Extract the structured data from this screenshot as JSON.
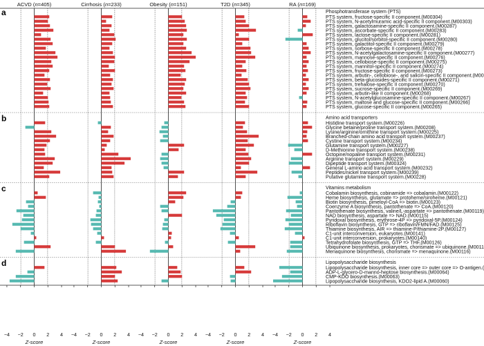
{
  "chart_data": {
    "type": "bar",
    "orientation": "horizontal",
    "xlabel": "Z-score",
    "xlim": [
      -4.5,
      4.5
    ],
    "xticks": [
      -4,
      -2,
      0,
      2,
      4
    ],
    "threshold": 1.96,
    "colors": {
      "positive": "#d63a3a",
      "negative": "#56b9b1"
    },
    "studies": [
      {
        "name": "ACVD",
        "n_label": "n",
        "n_value": "=405"
      },
      {
        "name": "Cirrhosis",
        "n_label": "n",
        "n_value": "=233"
      },
      {
        "name": "Obesity",
        "n_label": "n",
        "n_value": "=151"
      },
      {
        "name": "T2D",
        "n_label": "n",
        "n_value": "=345"
      },
      {
        "name": "RA",
        "n_label": "n",
        "n_value": "=169"
      }
    ],
    "panels": [
      {
        "letter": "a",
        "title": "Phosphotransferase system (PTS)",
        "rows": [
          {
            "label": "PTS system, fructose-specific II component.(M00304)",
            "values": [
              2.2,
              1.6,
              2.0,
              1.3,
              0.7
            ]
          },
          {
            "label": "PTS system, N-acetylmuramic acid-specific II component.(M00303)",
            "values": [
              2.0,
              0.7,
              2.4,
              1.5,
              1.2
            ]
          },
          {
            "label": "PTS system, galactosamine-specific II component.(M00287)",
            "values": [
              2.3,
              1.5,
              2.6,
              2.0,
              0.5
            ]
          },
          {
            "label": "PTS system, ascorbate-specific II component.(M00283)",
            "values": [
              2.8,
              1.2,
              2.7,
              3.0,
              -0.7
            ]
          },
          {
            "label": "PTS system, lactose-specific II component.(M00281)",
            "values": [
              1.0,
              1.9,
              2.2,
              0.5,
              1.5
            ]
          },
          {
            "label": "PTS system, glucitol/sorbitol-specific II component.(M00280)",
            "values": [
              2.4,
              2.1,
              2.7,
              2.0,
              -2.5
            ]
          },
          {
            "label": "PTS system, galactitol-specific II component.(M00279)",
            "values": [
              2.7,
              1.6,
              2.2,
              1.0,
              0.6
            ]
          },
          {
            "label": "PTS system, sorbose-specific II component.(M00278)",
            "values": [
              1.7,
              1.2,
              2.6,
              2.2,
              0.9
            ]
          },
          {
            "label": "PTS system, N-acetylgalactosamine-specific II component.(M00277)",
            "values": [
              3.1,
              1.7,
              3.4,
              2.3,
              1.2
            ]
          },
          {
            "label": "PTS system, mannose-specific II component.(M00276)",
            "values": [
              3.4,
              2.0,
              4.0,
              2.9,
              0.6
            ]
          },
          {
            "label": "PTS system, cellobiose-specific II component.(M00275)",
            "values": [
              2.5,
              1.9,
              3.1,
              1.5,
              0.9
            ]
          },
          {
            "label": "PTS system, mannitol-specific II component.(M00274)",
            "values": [
              2.7,
              1.1,
              2.3,
              1.0,
              0.6
            ]
          },
          {
            "label": "PTS system, fructose-specific II component.(M00273)",
            "values": [
              2.2,
              2.0,
              2.5,
              1.6,
              0.8
            ]
          },
          {
            "label": "PTS system, arbutin-, cellobiose-, and salicin-specific II component.(M00272)",
            "values": [
              1.5,
              1.3,
              1.8,
              0.9,
              0.5
            ]
          },
          {
            "label": "PTS system, beta-glucosides-specific II component.(M00271)",
            "values": [
              2.3,
              1.7,
              2.6,
              1.8,
              0.9
            ]
          },
          {
            "label": "PTS system, trehalose-specific II component.(M00270)",
            "values": [
              1.9,
              1.5,
              2.4,
              2.0,
              0.5
            ]
          },
          {
            "label": "PTS system, sucrose-specific II component.(M00269)",
            "values": [
              2.4,
              1.8,
              2.2,
              2.2,
              0.9
            ]
          },
          {
            "label": "PTS system, arbutin-like II component.(M00268)",
            "values": [
              1.3,
              1.2,
              2.6,
              1.5,
              0.6
            ]
          },
          {
            "label": "PTS system, N-acetylglucosamine-specific II component.(M00267)",
            "values": [
              2.0,
              1.3,
              1.9,
              1.7,
              -0.5
            ]
          },
          {
            "label": "PTS system, maltose and glucose-specific II component.(M00266)",
            "values": [
              2.1,
              1.4,
              2.3,
              1.4,
              0.7
            ]
          },
          {
            "label": "PTS system, glucose-specific II component.(M00265)",
            "values": [
              2.2,
              1.7,
              2.5,
              2.0,
              0.6
            ]
          }
        ]
      },
      {
        "letter": "b",
        "title": "Amino acid transporters",
        "rows": [
          {
            "label": "Histidine transport system.(M00226)",
            "values": [
              1.6,
              -0.5,
              -0.6,
              1.4,
              0.8
            ]
          },
          {
            "label": "Glycine betaine/proline transport system.(M00208)",
            "values": [
              -1.3,
              1.4,
              -1.0,
              1.1,
              1.4
            ]
          },
          {
            "label": "Lysine/arginine/ornithine transport system.(M00225)",
            "values": [
              2.5,
              1.0,
              -1.3,
              1.7,
              0.7
            ]
          },
          {
            "label": "Branched-chain amino acid transport system.(M00237)",
            "values": [
              3.2,
              1.8,
              -0.8,
              3.4,
              0.6
            ]
          },
          {
            "label": "Cystine transport system.(M00234)",
            "values": [
              2.3,
              1.3,
              -1.2,
              1.8,
              0.8
            ]
          },
          {
            "label": "Glutamine transport system.(M00227)",
            "values": [
              1.8,
              0.8,
              2.3,
              2.7,
              -2.1
            ]
          },
          {
            "label": "D-Methionine transport system.(M00238)",
            "values": [
              1.5,
              0.5,
              1.5,
              1.5,
              -1.2
            ]
          },
          {
            "label": "Octopine/nopaline transport system.(M00231)",
            "values": [
              1.6,
              2.5,
              -1.0,
              1.9,
              1.4
            ]
          },
          {
            "label": "Arginine transport system.(M00229)",
            "values": [
              3.0,
              4.3,
              -1.2,
              2.3,
              -1.7
            ]
          },
          {
            "label": "Dipeptide transport system.(M00324)",
            "values": [
              2.7,
              3.4,
              -1.0,
              2.0,
              -2.0
            ]
          },
          {
            "label": "General L-amino acid transport system.(M00232)",
            "values": [
              1.4,
              1.5,
              -0.7,
              0.8,
              1.1
            ]
          },
          {
            "label": "Peptides/nickel transport system.(M00239)",
            "values": [
              3.8,
              1.6,
              2.3,
              3.2,
              -1.6
            ]
          },
          {
            "label": "Putative glutamine transport system.(M00228)",
            "values": [
              2.2,
              1.8,
              1.4,
              1.5,
              -0.6
            ]
          }
        ]
      },
      {
        "letter": "c",
        "title": "Vitamins metabolism",
        "rows": [
          {
            "label": "Cobalamin biosynthesis, cobinamide => cobalamin.(M00122)",
            "values": [
              0.5,
              -1.2,
              2.6,
              1.0,
              -0.4
            ]
          },
          {
            "label": "Heme biosynthesis, glutamate => protoheme/siroheme.(M00121)",
            "values": [
              1.7,
              -0.4,
              2.2,
              0.8,
              -2.2
            ]
          },
          {
            "label": "Biotin biosynthesis, pimeloyl-CoA => biotin.(M00123)",
            "values": [
              -1.2,
              -0.5,
              1.0,
              -0.7,
              -1.0
            ]
          },
          {
            "label": "Coenzyme A biosynthesis, pantothenate => CoA.(M00120)",
            "values": [
              -0.9,
              -0.3,
              -1.2,
              -1.2,
              -0.8
            ]
          },
          {
            "label": "Pantothenate biosynthesis, valine/L-aspartate => pantothenate.(M00119)",
            "values": [
              -2.6,
              -0.7,
              -1.0,
              -3.3,
              -2.4
            ]
          },
          {
            "label": "NAD biosynthesis, aspartate => NAD.(M00115)",
            "values": [
              -1.6,
              -0.8,
              2.0,
              -2.8,
              -1.7
            ]
          },
          {
            "label": "Pyridoxal biosynthesis, erythrose-4P => pyridoxal-5P.(M00124)",
            "values": [
              -1.8,
              -1.6,
              -0.6,
              -1.7,
              -2.5
            ]
          },
          {
            "label": "Riboflavin biosynthesis, GTP => riboflavin/FMN/FAD.(M00125)",
            "values": [
              -3.2,
              -1.5,
              -0.8,
              -1.9,
              -2.0
            ]
          },
          {
            "label": "Thiamine biosynthesis, AIR => thiamine-P/thiamine-2P.(M00127)",
            "values": [
              -2.0,
              -1.2,
              -0.9,
              -2.2,
              -2.6
            ]
          },
          {
            "label": "C1-unit interconversion, eukaryotes.(M00141)",
            "values": [
              -0.5,
              -0.6,
              0.5,
              -0.8,
              -1.1
            ]
          },
          {
            "label": "C1-unit interconversion, prokaryotes.(M00140)",
            "values": [
              0.3,
              0.4,
              0.4,
              0.5,
              0.3
            ]
          },
          {
            "label": "Tetrahydrofolate biosynthesis, GTP => THF.(M00126)",
            "values": [
              -1.5,
              -0.8,
              -0.5,
              -1.1,
              -1.8
            ]
          },
          {
            "label": "Ubiquinone biosynthesis, prokaryotes, chorismate => ubiquinone.(M00117)",
            "values": [
              2.4,
              2.0,
              0.7,
              2.9,
              -1.8
            ]
          },
          {
            "label": "Menaquinone biosynthesis, chorismate => menaquinone.(M00116)",
            "values": [
              -2.7,
              3.6,
              -2.7,
              0.7,
              -2.3
            ]
          }
        ]
      },
      {
        "letter": "d",
        "title": "Lipopolysaccharide biosynthesis",
        "rows": [
          {
            "label": "Lipopolysaccharide biosynthesis, inner core => outer core => O-antigen.(M00080)",
            "values": [
              1.5,
              2.2,
              1.3,
              1.3,
              -3.4
            ]
          },
          {
            "label": "ADP-L-glycero-D-manno-heptose biosynthesis.(M00064)",
            "values": [
              -1.0,
              3.0,
              1.8,
              2.3,
              -1.8
            ]
          },
          {
            "label": "CMP-KDO biosynthesis.(M00063)",
            "values": [
              -2.7,
              2.0,
              2.0,
              -0.8,
              -3.0
            ]
          },
          {
            "label": "Lipopolysaccharide biosynthesis, KDO2-lipid A.(M00060)",
            "values": [
              -3.6,
              2.4,
              -1.0,
              -0.7,
              -4.3
            ]
          }
        ]
      }
    ]
  }
}
